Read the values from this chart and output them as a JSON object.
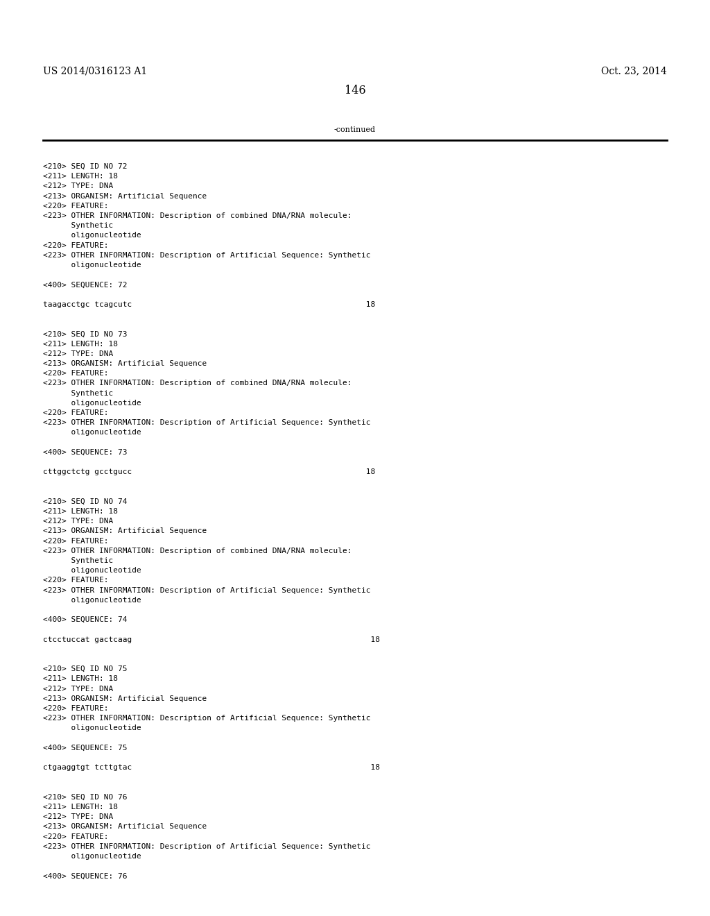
{
  "background_color": "#ffffff",
  "header_left": "US 2014/0316123 A1",
  "header_right": "Oct. 23, 2014",
  "page_number": "146",
  "continued_text": "-continued",
  "line_color": "#000000",
  "text_color": "#000000",
  "font_size_header": 10.0,
  "font_size_body": 8.0,
  "font_size_page": 11.5,
  "content": [
    "<210> SEQ ID NO 72",
    "<211> LENGTH: 18",
    "<212> TYPE: DNA",
    "<213> ORGANISM: Artificial Sequence",
    "<220> FEATURE:",
    "<223> OTHER INFORMATION: Description of combined DNA/RNA molecule:",
    "      Synthetic",
    "      oligonucleotide",
    "<220> FEATURE:",
    "<223> OTHER INFORMATION: Description of Artificial Sequence: Synthetic",
    "      oligonucleotide",
    "",
    "<400> SEQUENCE: 72",
    "",
    "taagacctgc tcagcutc                                                  18",
    "",
    "",
    "<210> SEQ ID NO 73",
    "<211> LENGTH: 18",
    "<212> TYPE: DNA",
    "<213> ORGANISM: Artificial Sequence",
    "<220> FEATURE:",
    "<223> OTHER INFORMATION: Description of combined DNA/RNA molecule:",
    "      Synthetic",
    "      oligonucleotide",
    "<220> FEATURE:",
    "<223> OTHER INFORMATION: Description of Artificial Sequence: Synthetic",
    "      oligonucleotide",
    "",
    "<400> SEQUENCE: 73",
    "",
    "cttggctctg gcctgucc                                                  18",
    "",
    "",
    "<210> SEQ ID NO 74",
    "<211> LENGTH: 18",
    "<212> TYPE: DNA",
    "<213> ORGANISM: Artificial Sequence",
    "<220> FEATURE:",
    "<223> OTHER INFORMATION: Description of combined DNA/RNA molecule:",
    "      Synthetic",
    "      oligonucleotide",
    "<220> FEATURE:",
    "<223> OTHER INFORMATION: Description of Artificial Sequence: Synthetic",
    "      oligonucleotide",
    "",
    "<400> SEQUENCE: 74",
    "",
    "ctcctuccat gactcaag                                                   18",
    "",
    "",
    "<210> SEQ ID NO 75",
    "<211> LENGTH: 18",
    "<212> TYPE: DNA",
    "<213> ORGANISM: Artificial Sequence",
    "<220> FEATURE:",
    "<223> OTHER INFORMATION: Description of Artificial Sequence: Synthetic",
    "      oligonucleotide",
    "",
    "<400> SEQUENCE: 75",
    "",
    "ctgaaggtgt tcttgtac                                                   18",
    "",
    "",
    "<210> SEQ ID NO 76",
    "<211> LENGTH: 18",
    "<212> TYPE: DNA",
    "<213> ORGANISM: Artificial Sequence",
    "<220> FEATURE:",
    "<223> OTHER INFORMATION: Description of Artificial Sequence: Synthetic",
    "      oligonucleotide",
    "",
    "<400> SEQUENCE: 76"
  ]
}
